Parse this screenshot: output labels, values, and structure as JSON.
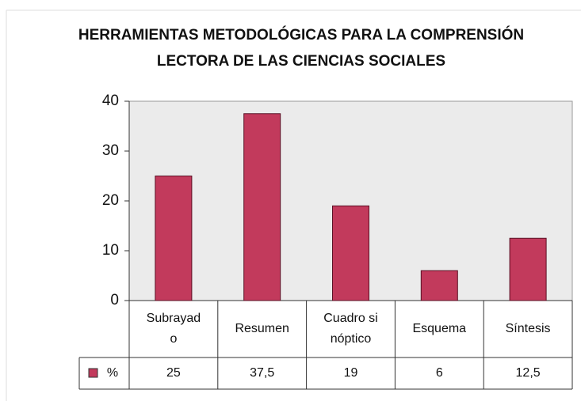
{
  "chart_data": {
    "type": "bar",
    "title": "HERRAMIENTAS METODOLÓGICAS PARA LA COMPRENSIÓN LECTORA DE LAS CIENCIAS SOCIALES",
    "categories": [
      "Subrayado",
      "Resumen",
      "Cuadro sinóptico",
      "Esquema",
      "Síntesis"
    ],
    "series": [
      {
        "name": "%",
        "color": "#c23a5c",
        "values": [
          25,
          37.5,
          19,
          6,
          12.5
        ],
        "value_labels": [
          "25",
          "37,5",
          "19",
          "6",
          "12,5"
        ]
      }
    ],
    "ylim": [
      0,
      40
    ],
    "yticks": [
      0,
      10,
      20,
      30,
      40
    ],
    "grid": false
  }
}
